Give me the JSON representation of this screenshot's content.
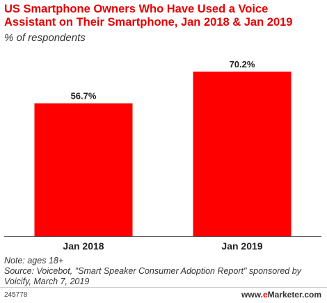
{
  "header": {
    "title": "US Smartphone Owners Who Have Used a Voice Assistant on Their Smartphone, Jan 2018 & Jan 2019",
    "subtitle": "% of respondents"
  },
  "chart_data": {
    "type": "bar",
    "categories": [
      "Jan 2018",
      "Jan 2019"
    ],
    "values": [
      56.7,
      70.2
    ],
    "value_labels": [
      "56.7%",
      "70.2%"
    ],
    "title": "US Smartphone Owners Who Have Used a Voice Assistant on Their Smartphone, Jan 2018 & Jan 2019",
    "subtitle": "% of respondents",
    "xlabel": "",
    "ylabel": "",
    "ylim": [
      0,
      80
    ],
    "grid": false,
    "legend": "none",
    "bar_color": "#ff0000"
  },
  "footer": {
    "note": "Note: ages 18+",
    "source": "Source: Voicebot, \"Smart Speaker Consumer Adoption Report\" sponsored by Voicify, March 7, 2019",
    "chart_id": "245778",
    "brand_prefix": "www.",
    "brand_accent": "e",
    "brand_suffix": "Marketer.com"
  },
  "colors": {
    "title": "#e50000",
    "bar": "#ff0000"
  }
}
